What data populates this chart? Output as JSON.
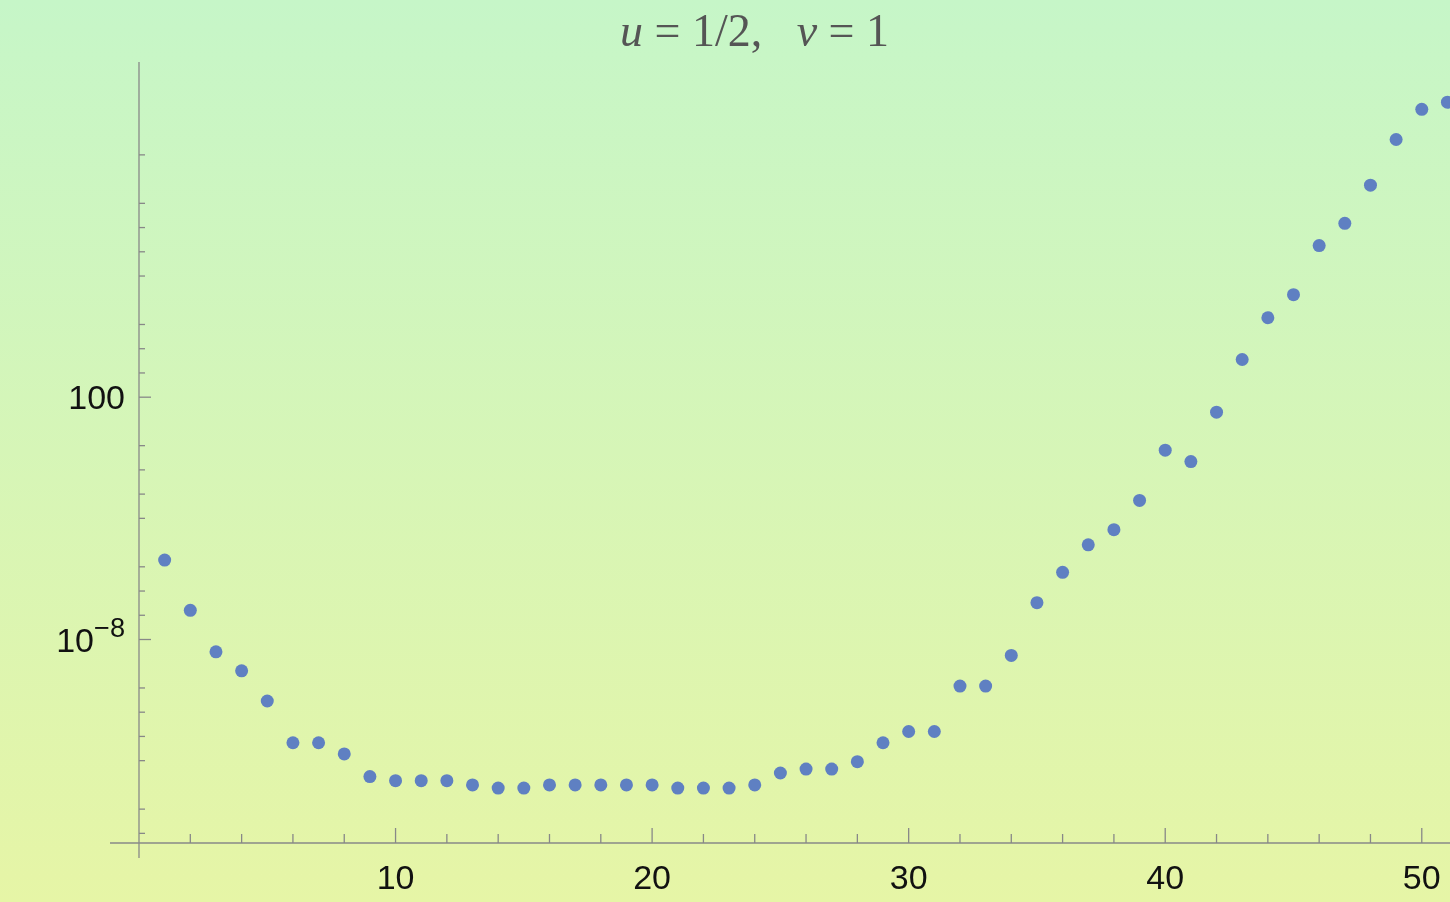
{
  "chart_data": {
    "type": "scatter",
    "title": "u = 1/2,   v = 1",
    "log": "y",
    "marker": "circle",
    "grid": false,
    "xlim": [
      0,
      51.1
    ],
    "ylim": [
      4e-17,
      6800000000000000.0
    ],
    "xticks": [
      {
        "value": 2,
        "label": null
      },
      {
        "value": 4,
        "label": null
      },
      {
        "value": 6,
        "label": null
      },
      {
        "value": 8,
        "label": null
      },
      10,
      {
        "value": 12,
        "label": null
      },
      {
        "value": 14,
        "label": null
      },
      {
        "value": 16,
        "label": null
      },
      {
        "value": 18,
        "label": null
      },
      20,
      {
        "value": 22,
        "label": null
      },
      {
        "value": 24,
        "label": null
      },
      {
        "value": 26,
        "label": null
      },
      {
        "value": 28,
        "label": null
      },
      30,
      {
        "value": 32,
        "label": null
      },
      {
        "value": 34,
        "label": null
      },
      {
        "value": 36,
        "label": null
      },
      {
        "value": 38,
        "label": null
      },
      40,
      {
        "value": 42,
        "label": null
      },
      {
        "value": 44,
        "label": null
      },
      {
        "value": 46,
        "label": null
      },
      {
        "value": 48,
        "label": null
      },
      50
    ],
    "yticks": [
      {
        "value": 1e-16,
        "label": null
      },
      {
        "value": 1e-15,
        "label": null
      },
      {
        "value": 1e-13,
        "label": null
      },
      {
        "value": 1e-12,
        "label": null
      },
      {
        "value": 1e-11,
        "label": null
      },
      {
        "value": 1e-10,
        "label": null
      },
      {
        "value": 1e-08,
        "label": "10$^{−8}$"
      },
      {
        "value": 1e-07,
        "label": null
      },
      {
        "value": 1e-06,
        "label": null
      },
      {
        "value": 1e-05,
        "label": null
      },
      {
        "value": 0.001,
        "label": null
      },
      {
        "value": 0.01,
        "label": null
      },
      {
        "value": 0.1,
        "label": null
      },
      {
        "value": 1,
        "label": null
      },
      100,
      {
        "value": 1000.0,
        "label": null
      },
      {
        "value": 10000.0,
        "label": null
      },
      {
        "value": 100000.0,
        "label": null
      },
      {
        "value": 10000000.0,
        "label": null
      },
      {
        "value": 100000000.0,
        "label": null
      },
      {
        "value": 1000000000.0,
        "label": null
      },
      {
        "value": 10000000000.0,
        "label": null
      },
      {
        "value": 1000000000000.0,
        "label": null
      }
    ],
    "series": [
      {
        "color": "#5f80c2",
        "x": [
          1,
          2,
          3,
          4,
          5,
          6,
          7,
          8,
          9,
          10,
          11,
          12,
          13,
          14,
          15,
          16,
          17,
          18,
          19,
          20,
          21,
          22,
          23,
          24,
          25,
          26,
          27,
          28,
          29,
          30,
          31,
          32,
          33,
          34,
          35,
          36,
          37,
          38,
          39,
          40,
          41,
          42,
          43,
          44,
          45,
          46,
          47,
          48,
          49,
          50,
          51
        ],
        "values": [
          1.9e-05,
          1.6e-07,
          3.1e-09,
          5.1e-10,
          2.9e-11,
          5.5e-13,
          5.5e-13,
          1.9e-13,
          2.2e-14,
          1.5e-14,
          1.5e-14,
          1.5e-14,
          1e-14,
          7.4e-15,
          7.4e-15,
          1e-14,
          1e-14,
          1e-14,
          1e-14,
          1e-14,
          7.4e-15,
          7.4e-15,
          7.4e-15,
          1e-14,
          3.1e-14,
          4.5e-14,
          4.5e-14,
          9.1e-14,
          5.5e-13,
          1.6e-12,
          1.6e-12,
          1.2e-10,
          1.2e-10,
          2.2e-09,
          3.3e-07,
          5.9e-06,
          8.1e-05,
          0.00034,
          0.0055,
          0.65,
          0.22,
          24,
          3600,
          190000.0,
          1700000.0,
          180000000.0,
          1500000000.0,
          56000000000.0,
          4300000000000.0,
          76000000000000.0,
          150000000000000.0
        ]
      }
    ]
  }
}
